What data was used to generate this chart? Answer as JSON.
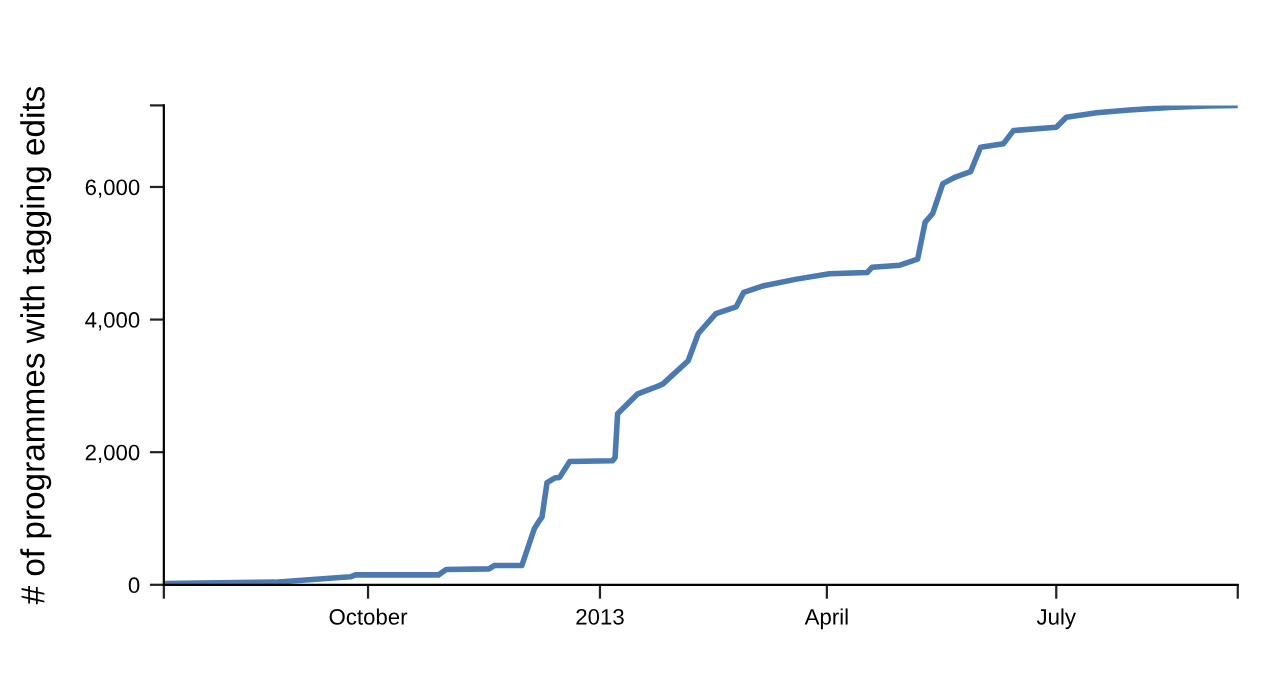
{
  "chart_data": {
    "type": "line",
    "ylabel": "# of programmes with tagging edits",
    "x": [
      "2012-07-12",
      "2012-08-25",
      "2012-09-24",
      "2012-09-26",
      "2012-10-29",
      "2012-11-01",
      "2012-11-18",
      "2012-11-20",
      "2012-12-01",
      "2012-12-06",
      "2012-12-08",
      "2012-12-09",
      "2012-12-11",
      "2012-12-14",
      "2012-12-16",
      "2012-12-20",
      "2013-01-06",
      "2013-01-07",
      "2013-01-08",
      "2013-01-12",
      "2013-01-16",
      "2013-01-23",
      "2013-01-26",
      "2013-02-05",
      "2013-02-09",
      "2013-02-16",
      "2013-02-24",
      "2013-02-27",
      "2013-03-07",
      "2013-03-20",
      "2013-04-02",
      "2013-04-17",
      "2013-04-19",
      "2013-04-30",
      "2013-05-07",
      "2013-05-10",
      "2013-05-13",
      "2013-05-17",
      "2013-05-22",
      "2013-05-28",
      "2013-06-01",
      "2013-06-10",
      "2013-06-14",
      "2013-07-01",
      "2013-07-05",
      "2013-07-17",
      "2013-07-30",
      "2013-08-15",
      "2013-08-30",
      "2013-09-11"
    ],
    "series": [
      {
        "color": "#4a7ab0",
        "values": [
          20,
          40,
          120,
          150,
          150,
          230,
          240,
          290,
          290,
          850,
          970,
          1020,
          1540,
          1610,
          1620,
          1860,
          1870,
          1920,
          2580,
          2730,
          2880,
          2980,
          3030,
          3380,
          3790,
          4090,
          4190,
          4410,
          4510,
          4610,
          4690,
          4710,
          4790,
          4820,
          4910,
          5470,
          5600,
          6050,
          6150,
          6230,
          6600,
          6650,
          6850,
          6900,
          7050,
          7120,
          7160,
          7200,
          7220,
          7230
        ]
      }
    ],
    "xlim": [
      "2012-07-12",
      "2013-09-11"
    ],
    "xticks": [
      {
        "value": "2012-07-12",
        "label": null
      },
      {
        "value": "2012-10-01",
        "label": "October"
      },
      {
        "value": "2013-01-01",
        "label": "2013"
      },
      {
        "value": "2013-04-01",
        "label": "April"
      },
      {
        "value": "2013-07-01",
        "label": "July"
      },
      {
        "value": "2013-09-11",
        "label": null
      }
    ],
    "ylim": [
      0,
      7230
    ],
    "yticks": [
      {
        "value": 0,
        "label": "0"
      },
      {
        "value": 2000,
        "label": "2,000"
      },
      {
        "value": 4000,
        "label": "4,000"
      },
      {
        "value": 6000,
        "label": "6,000"
      },
      {
        "value": 7230,
        "label": null
      }
    ],
    "grid": false,
    "legend": false,
    "marker": "none",
    "line_style": "solid"
  }
}
